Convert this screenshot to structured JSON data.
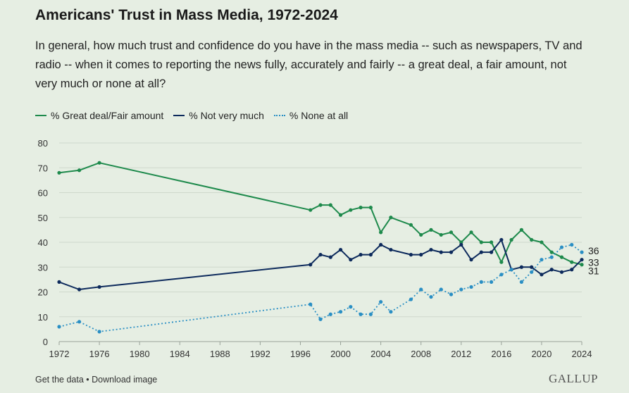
{
  "header": {
    "title": "Americans' Trust in Mass Media, 1972-2024",
    "subtitle": "In general, how much trust and confidence do you have in the mass media -- such as newspapers, TV and radio -- when it comes to reporting the news fully, accurately and fairly -- a great deal, a fair amount, not very much or none at all?"
  },
  "footer": {
    "get_data": "Get the data",
    "separator": " • ",
    "download": "Download image",
    "brand": "GALLUP"
  },
  "chart_data": {
    "type": "line",
    "title": "Americans' Trust in Mass Media, 1972-2024",
    "xlim": [
      1972,
      2024
    ],
    "ylim": [
      0,
      80
    ],
    "xticks": [
      1972,
      1976,
      1980,
      1984,
      1988,
      1992,
      1996,
      2000,
      2004,
      2008,
      2012,
      2016,
      2020,
      2024
    ],
    "yticks": [
      0,
      10,
      20,
      30,
      40,
      50,
      60,
      70,
      80
    ],
    "grid": true,
    "legend_position": "top-left",
    "series": [
      {
        "name": "% Great deal/Fair amount",
        "color": "#1e8a4c",
        "style": "solid",
        "end_label": "31",
        "x": [
          1972,
          1974,
          1976,
          1997,
          1998,
          1999,
          2000,
          2001,
          2002,
          2003,
          2004,
          2005,
          2007,
          2008,
          2009,
          2010,
          2011,
          2012,
          2013,
          2014,
          2015,
          2016,
          2017,
          2018,
          2019,
          2020,
          2021,
          2022,
          2023,
          2024
        ],
        "values": [
          68,
          69,
          72,
          53,
          55,
          55,
          51,
          53,
          54,
          54,
          44,
          50,
          47,
          43,
          45,
          43,
          44,
          40,
          44,
          40,
          40,
          32,
          41,
          45,
          41,
          40,
          36,
          34,
          32,
          31
        ]
      },
      {
        "name": "% Not very much",
        "color": "#0d2a5c",
        "style": "solid",
        "end_label": "33",
        "x": [
          1972,
          1974,
          1976,
          1997,
          1998,
          1999,
          2000,
          2001,
          2002,
          2003,
          2004,
          2005,
          2007,
          2008,
          2009,
          2010,
          2011,
          2012,
          2013,
          2014,
          2015,
          2016,
          2017,
          2018,
          2019,
          2020,
          2021,
          2022,
          2023,
          2024
        ],
        "values": [
          24,
          21,
          22,
          31,
          35,
          34,
          37,
          33,
          35,
          35,
          39,
          37,
          35,
          35,
          37,
          36,
          36,
          39,
          33,
          36,
          36,
          41,
          29,
          30,
          30,
          27,
          29,
          28,
          29,
          33
        ]
      },
      {
        "name": "% None at all",
        "color": "#2a8fc4",
        "style": "dotted",
        "end_label": "36",
        "x": [
          1972,
          1974,
          1976,
          1997,
          1998,
          1999,
          2000,
          2001,
          2002,
          2003,
          2004,
          2005,
          2007,
          2008,
          2009,
          2010,
          2011,
          2012,
          2013,
          2014,
          2015,
          2016,
          2017,
          2018,
          2019,
          2020,
          2021,
          2022,
          2023,
          2024
        ],
        "values": [
          6,
          8,
          4,
          15,
          9,
          11,
          12,
          14,
          11,
          11,
          16,
          12,
          17,
          21,
          18,
          21,
          19,
          21,
          22,
          24,
          24,
          27,
          29,
          24,
          28,
          33,
          34,
          38,
          39,
          36
        ]
      }
    ]
  }
}
